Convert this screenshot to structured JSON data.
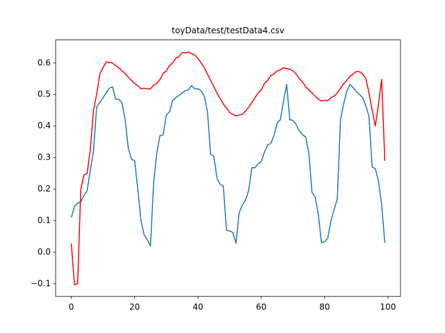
{
  "chart_data": {
    "type": "line",
    "title": "toyData/test/testData4.csv",
    "x": [
      0,
      1,
      2,
      3,
      4,
      5,
      6,
      7,
      8,
      9,
      10,
      11,
      12,
      13,
      14,
      15,
      16,
      17,
      18,
      19,
      20,
      21,
      22,
      23,
      24,
      25,
      26,
      27,
      28,
      29,
      30,
      31,
      32,
      33,
      34,
      35,
      36,
      37,
      38,
      39,
      40,
      41,
      42,
      43,
      44,
      45,
      46,
      47,
      48,
      49,
      50,
      51,
      52,
      53,
      54,
      55,
      56,
      57,
      58,
      59,
      60,
      61,
      62,
      63,
      64,
      65,
      66,
      67,
      68,
      69,
      70,
      71,
      72,
      73,
      74,
      75,
      76,
      77,
      78,
      79,
      80,
      81,
      82,
      83,
      84,
      85,
      86,
      87,
      88,
      89,
      90,
      91,
      92,
      93,
      94,
      95,
      96,
      97,
      98,
      99
    ],
    "series": [
      {
        "color": "#1f77b4",
        "values": [
          0.11,
          0.145,
          0.155,
          0.16,
          0.18,
          0.195,
          0.26,
          0.32,
          0.46,
          0.475,
          0.49,
          0.505,
          0.52,
          0.525,
          0.485,
          0.485,
          0.475,
          0.42,
          0.33,
          0.295,
          0.29,
          0.2,
          0.1,
          0.055,
          0.04,
          0.02,
          0.22,
          0.315,
          0.37,
          0.372,
          0.435,
          0.445,
          0.48,
          0.49,
          0.497,
          0.505,
          0.512,
          0.515,
          0.528,
          0.518,
          0.518,
          0.512,
          0.495,
          0.445,
          0.31,
          0.305,
          0.235,
          0.215,
          0.21,
          0.07,
          0.067,
          0.063,
          0.028,
          0.125,
          0.15,
          0.165,
          0.195,
          0.268,
          0.268,
          0.28,
          0.288,
          0.318,
          0.34,
          0.345,
          0.37,
          0.41,
          0.42,
          0.478,
          0.532,
          0.42,
          0.418,
          0.405,
          0.385,
          0.373,
          0.365,
          0.315,
          0.19,
          0.175,
          0.12,
          0.03,
          0.033,
          0.045,
          0.1,
          0.135,
          0.17,
          0.42,
          0.47,
          0.51,
          0.532,
          0.522,
          0.51,
          0.5,
          0.49,
          0.465,
          0.43,
          0.27,
          0.265,
          0.225,
          0.15,
          0.03
        ]
      },
      {
        "color": "#ff0000",
        "values": [
          0.028,
          -0.103,
          -0.1,
          0.2,
          0.245,
          0.25,
          0.325,
          0.45,
          0.5,
          0.565,
          0.585,
          0.603,
          0.602,
          0.6,
          0.592,
          0.585,
          0.575,
          0.567,
          0.555,
          0.545,
          0.535,
          0.528,
          0.518,
          0.52,
          0.518,
          0.518,
          0.53,
          0.535,
          0.548,
          0.567,
          0.575,
          0.592,
          0.6,
          0.615,
          0.62,
          0.633,
          0.632,
          0.635,
          0.63,
          0.625,
          0.614,
          0.6,
          0.585,
          0.565,
          0.545,
          0.525,
          0.505,
          0.487,
          0.47,
          0.457,
          0.443,
          0.437,
          0.432,
          0.435,
          0.437,
          0.447,
          0.46,
          0.474,
          0.49,
          0.505,
          0.515,
          0.535,
          0.545,
          0.56,
          0.565,
          0.575,
          0.578,
          0.585,
          0.582,
          0.58,
          0.575,
          0.565,
          0.55,
          0.54,
          0.525,
          0.515,
          0.505,
          0.495,
          0.485,
          0.48,
          0.482,
          0.48,
          0.49,
          0.495,
          0.505,
          0.52,
          0.535,
          0.545,
          0.558,
          0.565,
          0.573,
          0.572,
          0.565,
          0.55,
          0.505,
          0.45,
          0.4,
          0.47,
          0.548,
          0.29
        ]
      }
    ],
    "xlim": [
      -4.95,
      103.95
    ],
    "ylim": [
      -0.14,
      0.673
    ],
    "xticks": [
      0,
      20,
      40,
      60,
      80,
      100
    ],
    "yticks": [
      {
        "value": -0.1,
        "label": "−0.1"
      },
      {
        "value": 0,
        "label": "0.0"
      },
      0.1,
      0.2,
      0.3,
      0.4,
      0.5,
      0.6
    ],
    "grid": false
  }
}
